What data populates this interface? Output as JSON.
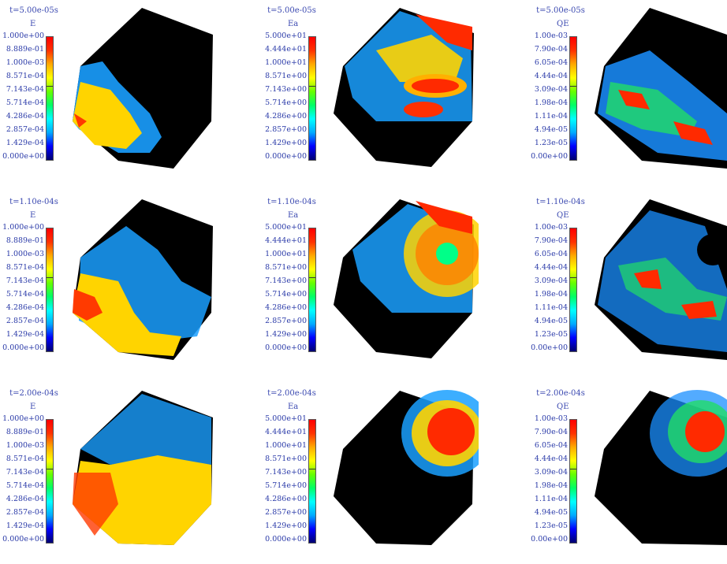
{
  "colors": {
    "scale": [
      "#000070",
      "#0000ff",
      "#00aaff",
      "#00ffff",
      "#00ff66",
      "#66ff00",
      "#ffff00",
      "#ffaa00",
      "#ff3300",
      "#ff0000"
    ],
    "body_black": "#000000",
    "label_blue": "#2a3aa8"
  },
  "variables": [
    {
      "name": "E",
      "ticks": [
        "1.000e+00",
        "8.889e-01",
        "1.000e-03",
        "8.571e-04",
        "7.143e-04",
        "5.714e-04",
        "4.286e-04",
        "2.857e-04",
        "1.429e-04",
        "0.000e+00"
      ]
    },
    {
      "name": "Ea",
      "ticks": [
        "5.000e+01",
        "4.444e+01",
        "1.000e+01",
        "8.571e+00",
        "7.143e+00",
        "5.714e+00",
        "4.286e+00",
        "2.857e+00",
        "1.429e+00",
        "0.000e+00"
      ]
    },
    {
      "name": "QE",
      "ticks": [
        "1.00e-03",
        "7.90e-04",
        "6.05e-04",
        "4.44e-04",
        "3.09e-04",
        "1.98e-04",
        "1.11e-04",
        "4.94e-05",
        "1.23e-05",
        "0.00e+00"
      ]
    }
  ],
  "times": [
    "t=5.00e-05s",
    "t=1.10e-04s",
    "t=2.00e-04s"
  ],
  "panels": [
    {
      "time": "t=5.00e-05s",
      "var": "E"
    },
    {
      "time": "t=5.00e-05s",
      "var": "Ea"
    },
    {
      "time": "t=5.00e-05s",
      "var": "QE"
    },
    {
      "time": "t=1.10e-04s",
      "var": "E"
    },
    {
      "time": "t=1.10e-04s",
      "var": "Ea"
    },
    {
      "time": "t=1.10e-04s",
      "var": "QE"
    },
    {
      "time": "t=2.00e-04s",
      "var": "E"
    },
    {
      "time": "t=2.00e-04s",
      "var": "Ea"
    },
    {
      "time": "t=2.00e-04s",
      "var": "QE"
    }
  ]
}
